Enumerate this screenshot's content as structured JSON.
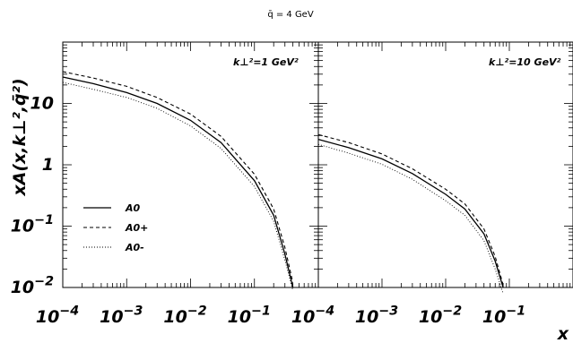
{
  "title": "q̄ = 4 GeV",
  "ylabel": "xA(x,k⊥²,q̄²)",
  "xlabel": "x",
  "colors": {
    "line": "#000000",
    "background": "#ffffff"
  },
  "legend": {
    "placement": "lower-left of left panel",
    "entries": [
      {
        "label": "A0",
        "style": "solid"
      },
      {
        "label": "A0+",
        "style": "dashed"
      },
      {
        "label": "A0-",
        "style": "dotted"
      }
    ]
  },
  "chart_data": [
    {
      "type": "line",
      "panel_label": "k⊥²=1 GeV²",
      "xscale": "log",
      "yscale": "log",
      "xlim": [
        0.0001,
        1
      ],
      "ylim": [
        0.01,
        100
      ],
      "xticks": [
        "10^-4",
        "10^-3",
        "10^-2",
        "10^-1"
      ],
      "yticks": [
        "10^-2",
        "10^-1",
        "1",
        "10"
      ],
      "x": [
        0.0001,
        0.0003,
        0.001,
        0.003,
        0.01,
        0.03,
        0.1,
        0.2,
        0.3,
        0.4
      ],
      "series": [
        {
          "name": "A0",
          "style": "solid",
          "values": [
            27,
            21,
            15,
            10,
            5.3,
            2.3,
            0.55,
            0.15,
            0.035,
            0.01
          ]
        },
        {
          "name": "A0+",
          "style": "dashed",
          "values": [
            33,
            26,
            19,
            12.5,
            6.7,
            2.9,
            0.7,
            0.19,
            0.045,
            0.012
          ]
        },
        {
          "name": "A0-",
          "style": "dotted",
          "values": [
            22,
            17,
            12.5,
            8.3,
            4.3,
            1.85,
            0.44,
            0.12,
            0.028,
            0.009
          ]
        }
      ]
    },
    {
      "type": "line",
      "panel_label": "k⊥²=10 GeV²",
      "xscale": "log",
      "yscale": "log",
      "xlim": [
        0.0001,
        1
      ],
      "ylim": [
        0.01,
        100
      ],
      "xticks": [
        "10^-4",
        "10^-3",
        "10^-2",
        "10^-1"
      ],
      "yticks": [
        "10^-2",
        "10^-1",
        "1",
        "10"
      ],
      "x": [
        0.0001,
        0.0003,
        0.001,
        0.003,
        0.01,
        0.02,
        0.04,
        0.06,
        0.08
      ],
      "series": [
        {
          "name": "A0",
          "style": "solid",
          "values": [
            2.6,
            1.9,
            1.25,
            0.72,
            0.33,
            0.19,
            0.075,
            0.027,
            0.01
          ]
        },
        {
          "name": "A0+",
          "style": "dashed",
          "values": [
            3.1,
            2.3,
            1.5,
            0.86,
            0.4,
            0.23,
            0.09,
            0.032,
            0.011
          ]
        },
        {
          "name": "A0-",
          "style": "dotted",
          "values": [
            2.15,
            1.55,
            1.02,
            0.58,
            0.26,
            0.15,
            0.058,
            0.02,
            0.008
          ]
        }
      ]
    }
  ]
}
